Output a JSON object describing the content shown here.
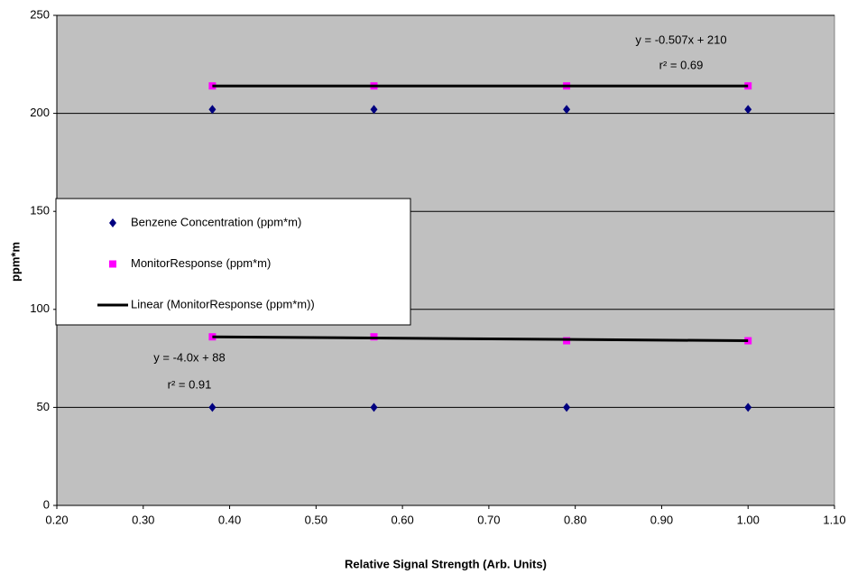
{
  "chart_data": {
    "type": "scatter",
    "x_label": "Relative Signal Strength (Arb. Units)",
    "y_label": "ppm*m",
    "xlim": [
      0.2,
      1.1
    ],
    "ylim": [
      0,
      250
    ],
    "xticks": [
      {
        "value": 0.2,
        "label": "0.20"
      },
      {
        "value": 0.3,
        "label": "0.30"
      },
      {
        "value": 0.4,
        "label": "0.40"
      },
      {
        "value": 0.5,
        "label": "0.50"
      },
      {
        "value": 0.6,
        "label": "0.60"
      },
      {
        "value": 0.7,
        "label": "0.70"
      },
      {
        "value": 0.8,
        "label": "0.80"
      },
      {
        "value": 0.9,
        "label": "0.90"
      },
      {
        "value": 1.0,
        "label": "1.00"
      },
      {
        "value": 1.1,
        "label": "1.10"
      }
    ],
    "yticks": [
      0,
      50,
      100,
      150,
      200,
      250
    ],
    "grid": true,
    "series": [
      {
        "name": "Benzene Concentration (ppm*m)",
        "color": "#000080",
        "marker": "diamond",
        "x": [
          0.38,
          0.567,
          0.79,
          1.0,
          0.38,
          0.567,
          0.79,
          1.0
        ],
        "values": [
          202,
          202,
          202,
          202,
          50,
          50,
          50,
          50
        ]
      },
      {
        "name": "MonitorResponse (ppm*m)",
        "color": "#ff00ff",
        "marker": "square",
        "x": [
          0.38,
          0.567,
          0.79,
          1.0,
          0.38,
          0.567,
          0.79,
          1.0
        ],
        "values": [
          214,
          214,
          214,
          214,
          86,
          86,
          84,
          84
        ]
      },
      {
        "name": "Linear (MonitorResponse (ppm*m))",
        "color": "#000000",
        "marker": "line",
        "x": [
          0.38,
          1.0,
          1.0,
          0.38,
          1.0
        ],
        "values": [
          214,
          214,
          null,
          86,
          84
        ]
      }
    ],
    "annotations": [
      "y = -0.507x + 210",
      "r² = 0.69",
      "y = -4.0x + 88",
      "r² = 0.91"
    ]
  }
}
